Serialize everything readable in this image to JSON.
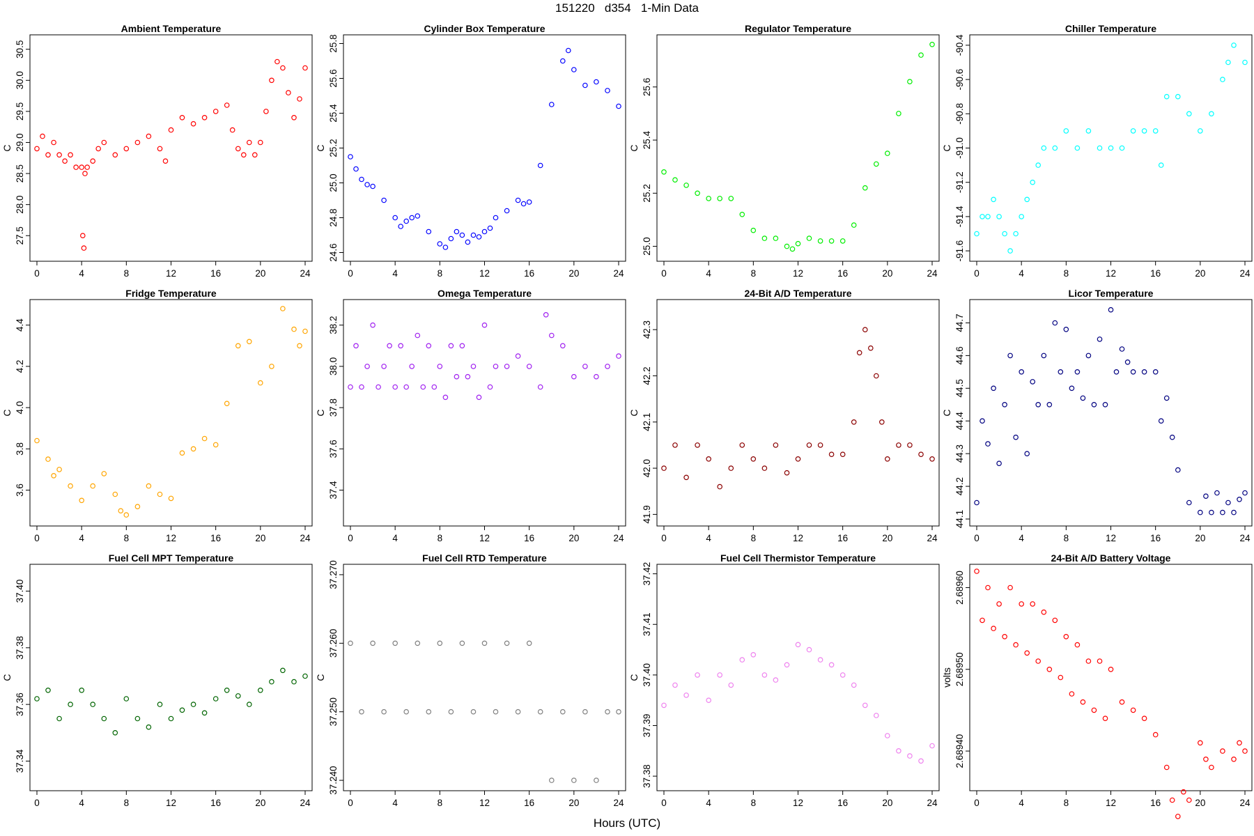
{
  "title": "151220   d354   1-Min Data",
  "xlabel": "Hours (UTC)",
  "chart_data": [
    {
      "type": "scatter",
      "title": "Ambient Temperature",
      "ylabel": "C",
      "color": "#ff0000",
      "xlim": [
        0,
        24
      ],
      "xticks": [
        0,
        4,
        8,
        12,
        16,
        20,
        24
      ],
      "ylim": [
        27.2,
        30.62
      ],
      "yticks": [
        27.5,
        28.0,
        28.5,
        29.0,
        29.5,
        30.0,
        30.5
      ],
      "ytick_labels": [
        "27.5",
        "28.0",
        "28.5",
        "29.0",
        "29.5",
        "30.0",
        "30.5"
      ],
      "x": [
        0,
        0.5,
        1,
        1.5,
        2,
        2.5,
        3,
        3.5,
        4,
        4.1,
        4.2,
        4.3,
        4.5,
        5,
        5.5,
        6,
        7,
        8,
        9,
        10,
        11,
        11.5,
        12,
        13,
        14,
        15,
        16,
        17,
        17.5,
        18,
        18.5,
        19,
        19.5,
        20,
        20.5,
        21,
        21.5,
        22,
        22.5,
        23,
        23.5,
        24
      ],
      "y": [
        28.9,
        29.1,
        28.8,
        29.0,
        28.8,
        28.7,
        28.8,
        28.6,
        28.6,
        27.5,
        27.3,
        28.5,
        28.6,
        28.7,
        28.9,
        29.0,
        28.8,
        28.9,
        29.0,
        29.1,
        28.9,
        28.7,
        29.2,
        29.4,
        29.3,
        29.4,
        29.5,
        29.6,
        29.2,
        28.9,
        28.8,
        29.0,
        28.8,
        29.0,
        29.5,
        30.0,
        30.3,
        30.2,
        29.8,
        29.4,
        29.7,
        30.2
      ]
    },
    {
      "type": "scatter",
      "title": "Cylinder Box Temperature",
      "ylabel": "C",
      "color": "#0000ff",
      "xlim": [
        0,
        24
      ],
      "xticks": [
        0,
        4,
        8,
        12,
        16,
        20,
        24
      ],
      "ylim": [
        24.59,
        25.81
      ],
      "yticks": [
        24.6,
        24.8,
        25.0,
        25.2,
        25.4,
        25.6,
        25.8
      ],
      "ytick_labels": [
        "24.6",
        "24.8",
        "25.0",
        "25.2",
        "25.4",
        "25.6",
        "25.8"
      ],
      "x": [
        0,
        0.5,
        1,
        1.5,
        2,
        3,
        4,
        4.5,
        5,
        5.5,
        6,
        7,
        8,
        8.5,
        9,
        9.5,
        10,
        10.5,
        11,
        11.5,
        12,
        12.5,
        13,
        14,
        15,
        15.5,
        16,
        17,
        18,
        19,
        19.5,
        20,
        21,
        22,
        23,
        24
      ],
      "y": [
        25.15,
        25.08,
        25.02,
        24.99,
        24.98,
        24.9,
        24.8,
        24.75,
        24.78,
        24.8,
        24.81,
        24.72,
        24.65,
        24.63,
        24.68,
        24.72,
        24.7,
        24.66,
        24.7,
        24.69,
        24.72,
        24.74,
        24.8,
        24.84,
        24.9,
        24.88,
        24.89,
        25.1,
        25.45,
        25.7,
        25.76,
        25.65,
        25.56,
        25.58,
        25.53,
        25.44
      ]
    },
    {
      "type": "scatter",
      "title": "Regulator Temperature",
      "ylabel": "C",
      "color": "#00ee00",
      "xlim": [
        0,
        24
      ],
      "xticks": [
        0,
        4,
        8,
        12,
        16,
        20,
        24
      ],
      "ylim": [
        24.97,
        25.77
      ],
      "yticks": [
        25.0,
        25.2,
        25.4,
        25.6
      ],
      "ytick_labels": [
        "25.0",
        "25.2",
        "25.4",
        "25.6"
      ],
      "x": [
        0,
        1,
        2,
        3,
        4,
        5,
        6,
        7,
        8,
        9,
        10,
        11,
        11.5,
        12,
        13,
        14,
        15,
        16,
        17,
        18,
        19,
        20,
        21,
        22,
        23,
        24
      ],
      "y": [
        25.28,
        25.25,
        25.23,
        25.2,
        25.18,
        25.18,
        25.18,
        25.12,
        25.06,
        25.03,
        25.03,
        25.0,
        24.99,
        25.01,
        25.03,
        25.02,
        25.02,
        25.02,
        25.08,
        25.22,
        25.31,
        25.35,
        25.5,
        25.62,
        25.72,
        25.76
      ]
    },
    {
      "type": "scatter",
      "title": "Chiller Temperature",
      "ylabel": "C",
      "color": "#00ffff",
      "xlim": [
        0,
        24
      ],
      "xticks": [
        0,
        4,
        8,
        12,
        16,
        20,
        24
      ],
      "ylim": [
        -91.62,
        -90.38
      ],
      "yticks": [
        -91.6,
        -91.4,
        -91.2,
        -91.0,
        -90.8,
        -90.6,
        -90.4
      ],
      "ytick_labels": [
        "-91.6",
        "-91.4",
        "-91.2",
        "-91.0",
        "-90.8",
        "-90.6",
        "-90.4"
      ],
      "x": [
        0,
        0.5,
        1,
        1.5,
        2,
        2.5,
        3,
        3.5,
        4,
        4.5,
        5,
        5.5,
        6,
        7,
        8,
        9,
        10,
        11,
        12,
        13,
        14,
        15,
        16,
        16.5,
        17,
        18,
        19,
        20,
        21,
        22,
        22.5,
        23,
        24
      ],
      "y": [
        -91.5,
        -91.4,
        -91.4,
        -91.3,
        -91.4,
        -91.5,
        -91.6,
        -91.5,
        -91.4,
        -91.3,
        -91.2,
        -91.1,
        -91.0,
        -91.0,
        -90.9,
        -91.0,
        -90.9,
        -91.0,
        -91.0,
        -91.0,
        -90.9,
        -90.9,
        -90.9,
        -91.1,
        -90.7,
        -90.7,
        -90.8,
        -90.9,
        -90.8,
        -90.6,
        -90.5,
        -90.4,
        -90.5
      ]
    },
    {
      "type": "scatter",
      "title": "Fridge Temperature",
      "ylabel": "C",
      "color": "#ffa500",
      "xlim": [
        0,
        24
      ],
      "xticks": [
        0,
        4,
        8,
        12,
        16,
        20,
        24
      ],
      "ylim": [
        3.46,
        4.49
      ],
      "yticks": [
        3.6,
        3.8,
        4.0,
        4.2,
        4.4
      ],
      "ytick_labels": [
        "3.6",
        "3.8",
        "4.0",
        "4.2",
        "4.4"
      ],
      "x": [
        0,
        1,
        1.5,
        2,
        3,
        4,
        5,
        6,
        7,
        7.5,
        8,
        9,
        10,
        11,
        12,
        13,
        14,
        15,
        16,
        17,
        18,
        19,
        20,
        21,
        22,
        23,
        23.5,
        24
      ],
      "y": [
        3.84,
        3.75,
        3.67,
        3.7,
        3.62,
        3.55,
        3.62,
        3.68,
        3.58,
        3.5,
        3.48,
        3.52,
        3.62,
        3.58,
        3.56,
        3.78,
        3.8,
        3.85,
        3.82,
        4.02,
        4.3,
        4.32,
        4.12,
        4.2,
        4.48,
        4.38,
        4.3,
        4.37
      ]
    },
    {
      "type": "scatter",
      "title": "Omega Temperature",
      "ylabel": "C",
      "color": "#a020f0",
      "xlim": [
        0,
        24
      ],
      "xticks": [
        0,
        4,
        8,
        12,
        16,
        20,
        24
      ],
      "ylim": [
        37.26,
        38.29
      ],
      "yticks": [
        37.4,
        37.6,
        37.8,
        38.0,
        38.2
      ],
      "ytick_labels": [
        "37.4",
        "37.6",
        "37.8",
        "38.0",
        "38.2"
      ],
      "x": [
        0,
        0.5,
        1,
        1.5,
        2,
        2.5,
        3,
        3.5,
        4,
        4.5,
        5,
        5.5,
        6,
        6.5,
        7,
        7.5,
        8,
        8.5,
        9,
        9.5,
        10,
        10.5,
        11,
        11.5,
        12,
        12.5,
        13,
        14,
        15,
        16,
        17,
        17.5,
        18,
        19,
        20,
        21,
        22,
        23,
        24
      ],
      "y": [
        37.9,
        38.1,
        37.9,
        38.0,
        38.2,
        37.9,
        38.0,
        38.1,
        37.9,
        38.1,
        37.9,
        38.0,
        38.15,
        37.9,
        38.1,
        37.9,
        38.0,
        37.85,
        38.1,
        37.95,
        38.1,
        37.95,
        38.0,
        37.85,
        38.2,
        37.9,
        38.0,
        38.0,
        38.05,
        38.0,
        37.9,
        38.25,
        38.15,
        38.1,
        37.95,
        38.0,
        37.95,
        38.0,
        38.05
      ]
    },
    {
      "type": "scatter",
      "title": "24-Bit A/D Temperature",
      "ylabel": "C",
      "color": "#8b0000",
      "xlim": [
        0,
        24
      ],
      "xticks": [
        0,
        4,
        8,
        12,
        16,
        20,
        24
      ],
      "ylim": [
        41.89,
        42.35
      ],
      "yticks": [
        41.9,
        42.0,
        42.1,
        42.2,
        42.3
      ],
      "ytick_labels": [
        "41.9",
        "42.0",
        "42.1",
        "42.2",
        "42.3"
      ],
      "x": [
        0,
        1,
        2,
        3,
        4,
        5,
        6,
        7,
        8,
        9,
        10,
        11,
        12,
        13,
        14,
        15,
        16,
        17,
        17.5,
        18,
        18.5,
        19,
        19.5,
        20,
        21,
        22,
        23,
        24
      ],
      "y": [
        42.0,
        42.05,
        41.98,
        42.05,
        42.02,
        41.96,
        42.0,
        42.05,
        42.02,
        42.0,
        42.05,
        41.99,
        42.02,
        42.05,
        42.05,
        42.03,
        42.03,
        42.1,
        42.25,
        42.3,
        42.26,
        42.2,
        42.1,
        42.02,
        42.05,
        42.05,
        42.03,
        42.02
      ]
    },
    {
      "type": "scatter",
      "title": "Licor Temperature",
      "ylabel": "C",
      "color": "#000080",
      "xlim": [
        0,
        24
      ],
      "xticks": [
        0,
        4,
        8,
        12,
        16,
        20,
        24
      ],
      "ylim": [
        44.1,
        44.75
      ],
      "yticks": [
        44.1,
        44.2,
        44.3,
        44.4,
        44.5,
        44.6,
        44.7
      ],
      "ytick_labels": [
        "44.1",
        "44.2",
        "44.3",
        "44.4",
        "44.5",
        "44.6",
        "44.7"
      ],
      "x": [
        0,
        0.5,
        1,
        1.5,
        2,
        2.5,
        3,
        3.5,
        4,
        4.5,
        5,
        5.5,
        6,
        6.5,
        7,
        7.5,
        8,
        8.5,
        9,
        9.5,
        10,
        10.5,
        11,
        11.5,
        12,
        12.5,
        13,
        13.5,
        14,
        15,
        16,
        16.5,
        17,
        17.5,
        18,
        19,
        20,
        20.5,
        21,
        21.5,
        22,
        22.5,
        23,
        23.5,
        24
      ],
      "y": [
        44.15,
        44.4,
        44.33,
        44.5,
        44.27,
        44.45,
        44.6,
        44.35,
        44.55,
        44.3,
        44.52,
        44.45,
        44.6,
        44.45,
        44.7,
        44.55,
        44.68,
        44.5,
        44.55,
        44.47,
        44.6,
        44.45,
        44.65,
        44.45,
        44.74,
        44.55,
        44.62,
        44.58,
        44.55,
        44.55,
        44.55,
        44.4,
        44.47,
        44.35,
        44.25,
        44.15,
        44.12,
        44.17,
        44.12,
        44.18,
        44.12,
        44.15,
        44.12,
        44.16,
        44.18
      ]
    },
    {
      "type": "scatter",
      "title": "Fuel Cell MPT Temperature",
      "ylabel": "C",
      "color": "#006400",
      "xlim": [
        0,
        24
      ],
      "xticks": [
        0,
        4,
        8,
        12,
        16,
        20,
        24
      ],
      "ylim": [
        37.332,
        37.407
      ],
      "yticks": [
        37.34,
        37.36,
        37.38,
        37.4
      ],
      "ytick_labels": [
        "37.34",
        "37.36",
        "37.38",
        "37.40"
      ],
      "x": [
        0,
        1,
        2,
        3,
        4,
        5,
        6,
        7,
        8,
        9,
        10,
        11,
        12,
        13,
        14,
        15,
        16,
        17,
        18,
        19,
        20,
        21,
        22,
        23,
        24
      ],
      "y": [
        37.362,
        37.365,
        37.355,
        37.36,
        37.365,
        37.36,
        37.355,
        37.35,
        37.362,
        37.355,
        37.352,
        37.36,
        37.355,
        37.358,
        37.36,
        37.357,
        37.362,
        37.365,
        37.363,
        37.36,
        37.365,
        37.368,
        37.372,
        37.368,
        37.37
      ]
    },
    {
      "type": "scatter",
      "title": "Fuel Cell RTD Temperature",
      "ylabel": "C",
      "color": "#808080",
      "xlim": [
        0,
        24
      ],
      "xticks": [
        0,
        4,
        8,
        12,
        16,
        20,
        24
      ],
      "ylim": [
        37.2395,
        37.2705
      ],
      "yticks": [
        37.24,
        37.25,
        37.26,
        37.27
      ],
      "ytick_labels": [
        "37.240",
        "37.250",
        "37.260",
        "37.270"
      ],
      "x": [
        0,
        1,
        2,
        3,
        4,
        5,
        6,
        7,
        8,
        9,
        10,
        11,
        12,
        13,
        14,
        15,
        16,
        17,
        18,
        19,
        20,
        21,
        22,
        23,
        24
      ],
      "y": [
        37.26,
        37.25,
        37.26,
        37.25,
        37.26,
        37.25,
        37.26,
        37.25,
        37.26,
        37.25,
        37.26,
        37.25,
        37.26,
        37.25,
        37.26,
        37.25,
        37.26,
        37.25,
        37.24,
        37.25,
        37.24,
        37.25,
        37.24,
        37.25,
        37.25
      ]
    },
    {
      "type": "scatter",
      "title": "Fuel Cell Thermistor Temperature",
      "ylabel": "C",
      "color": "#ee82ee",
      "xlim": [
        0,
        24
      ],
      "xticks": [
        0,
        4,
        8,
        12,
        16,
        20,
        24
      ],
      "ylim": [
        37.3785,
        37.4205
      ],
      "yticks": [
        37.38,
        37.39,
        37.4,
        37.41,
        37.42
      ],
      "ytick_labels": [
        "37.38",
        "37.39",
        "37.40",
        "37.41",
        "37.42"
      ],
      "x": [
        0,
        1,
        2,
        3,
        4,
        5,
        6,
        7,
        8,
        9,
        10,
        11,
        12,
        13,
        14,
        15,
        16,
        17,
        18,
        19,
        20,
        21,
        22,
        23,
        24
      ],
      "y": [
        37.394,
        37.398,
        37.396,
        37.4,
        37.395,
        37.4,
        37.398,
        37.403,
        37.404,
        37.4,
        37.399,
        37.402,
        37.406,
        37.405,
        37.403,
        37.402,
        37.4,
        37.398,
        37.394,
        37.392,
        37.388,
        37.385,
        37.384,
        37.383,
        37.386
      ]
    },
    {
      "type": "scatter",
      "title": "24-Bit A/D Battery Voltage",
      "ylabel": "volts",
      "color": "#ff0000",
      "xlim": [
        0,
        24
      ],
      "xticks": [
        0,
        4,
        8,
        12,
        16,
        20,
        24
      ],
      "ylim": [
        2.68936,
        2.68962
      ],
      "yticks": [
        2.6894,
        2.6895,
        2.6896
      ],
      "ytick_labels": [
        "2.68940",
        "2.68950",
        "2.68960"
      ],
      "x": [
        0,
        0.5,
        1,
        1.5,
        2,
        2.5,
        3,
        3.5,
        4,
        4.5,
        5,
        5.5,
        6,
        6.5,
        7,
        7.5,
        8,
        8.5,
        9,
        9.5,
        10,
        10.5,
        11,
        11.5,
        12,
        13,
        14,
        15,
        16,
        17,
        17.5,
        18,
        18.5,
        19,
        20,
        20.5,
        21,
        22,
        23,
        23.5,
        24
      ],
      "y": [
        2.68962,
        2.68956,
        2.6896,
        2.68955,
        2.68958,
        2.68954,
        2.6896,
        2.68953,
        2.68958,
        2.68952,
        2.68958,
        2.68951,
        2.68957,
        2.6895,
        2.68956,
        2.68949,
        2.68954,
        2.68947,
        2.68953,
        2.68946,
        2.68951,
        2.68945,
        2.68951,
        2.68944,
        2.6895,
        2.68946,
        2.68945,
        2.68944,
        2.68942,
        2.68938,
        2.68934,
        2.68932,
        2.68935,
        2.68934,
        2.68941,
        2.68939,
        2.68938,
        2.6894,
        2.68939,
        2.68941,
        2.6894
      ]
    }
  ]
}
